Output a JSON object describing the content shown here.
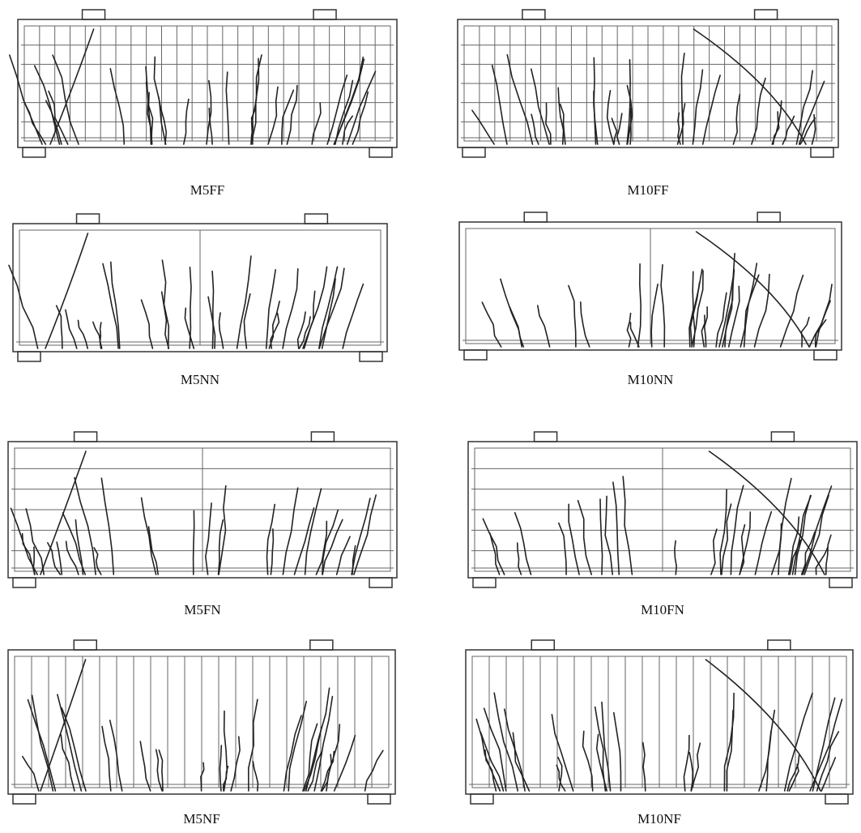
{
  "panels": [
    {
      "label": "M5FF"
    },
    {
      "label": "M10FF"
    },
    {
      "label": "M5NN"
    },
    {
      "label": "M10NN"
    },
    {
      "label": "M5FN"
    },
    {
      "label": "M10FN"
    },
    {
      "label": "M5NF"
    },
    {
      "label": "M10NF"
    }
  ]
}
